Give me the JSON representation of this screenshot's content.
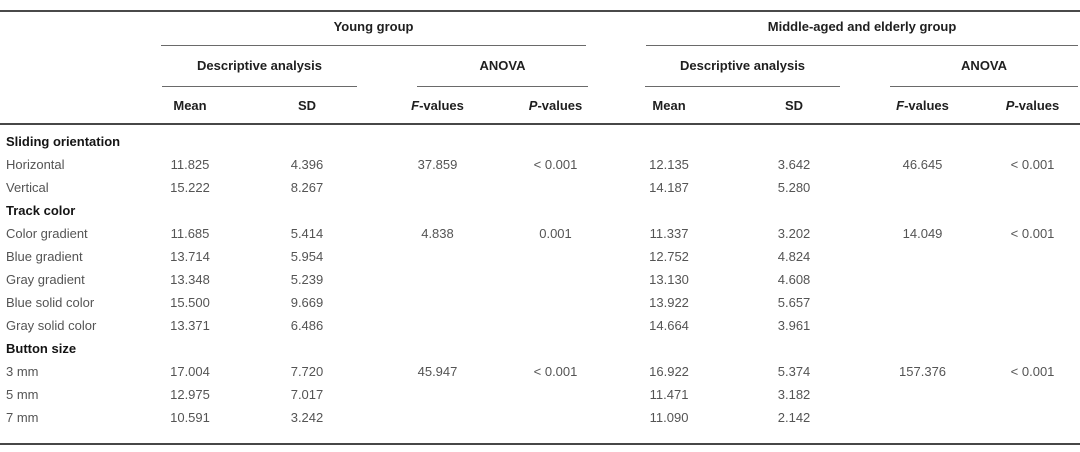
{
  "table": {
    "header": {
      "groups": [
        {
          "label": "Young group"
        },
        {
          "label": "Middle-aged and elderly group"
        }
      ],
      "subgroups": {
        "descriptive": "Descriptive analysis",
        "anova": "ANOVA"
      },
      "columns": {
        "mean": "Mean",
        "sd": "SD",
        "f_prefix": "F",
        "f_suffix": "-values",
        "p_prefix": "P",
        "p_suffix": "-values"
      }
    },
    "sections": [
      {
        "title": "Sliding orientation",
        "rows": [
          {
            "label": "Horizontal",
            "cells": [
              "11.825",
              "4.396",
              "37.859",
              "< 0.001",
              "12.135",
              "3.642",
              "46.645",
              "< 0.001"
            ]
          },
          {
            "label": "Vertical",
            "cells": [
              "15.222",
              "8.267",
              "",
              "",
              "14.187",
              "5.280",
              "",
              ""
            ]
          }
        ]
      },
      {
        "title": "Track color",
        "rows": [
          {
            "label": "Color gradient",
            "cells": [
              "11.685",
              "5.414",
              "4.838",
              "0.001",
              "11.337",
              "3.202",
              "14.049",
              "< 0.001"
            ]
          },
          {
            "label": "Blue gradient",
            "cells": [
              "13.714",
              "5.954",
              "",
              "",
              "12.752",
              "4.824",
              "",
              ""
            ]
          },
          {
            "label": "Gray gradient",
            "cells": [
              "13.348",
              "5.239",
              "",
              "",
              "13.130",
              "4.608",
              "",
              ""
            ]
          },
          {
            "label": "Blue solid color",
            "cells": [
              "15.500",
              "9.669",
              "",
              "",
              "13.922",
              "5.657",
              "",
              ""
            ]
          },
          {
            "label": "Gray solid color",
            "cells": [
              "13.371",
              "6.486",
              "",
              "",
              "14.664",
              "3.961",
              "",
              ""
            ]
          }
        ]
      },
      {
        "title": "Button size",
        "rows": [
          {
            "label": "3 mm",
            "cells": [
              "17.004",
              "7.720",
              "45.947",
              "< 0.001",
              "16.922",
              "5.374",
              "157.376",
              "< 0.001"
            ]
          },
          {
            "label": "5 mm",
            "cells": [
              "12.975",
              "7.017",
              "",
              "",
              "11.471",
              "3.182",
              "",
              ""
            ]
          },
          {
            "label": "7 mm",
            "cells": [
              "10.591",
              "3.242",
              "",
              "",
              "11.090",
              "2.142",
              "",
              ""
            ]
          }
        ]
      }
    ],
    "colors": {
      "rule_dark": "#474747",
      "rule_light": "#6a6a6a",
      "header_text": "#1f1f1f",
      "data_text": "#545454"
    }
  }
}
